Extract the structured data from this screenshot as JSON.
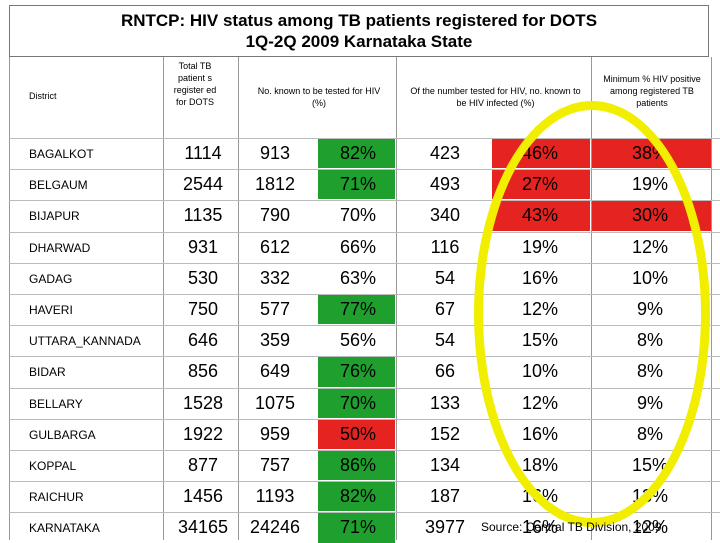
{
  "title_line1": "RNTCP: HIV status among TB patients registered for DOTS",
  "title_line2": "1Q-2Q 2009 Karnataka State",
  "headers": {
    "district": "District",
    "total": "Total TB patient s register ed for DOTS",
    "known_tested": "No. known to be tested for HIV (%)",
    "hiv_infected": "Of the number tested for HIV, no. known to be HIV infected (%)",
    "min_positive": "Minimum % HIV positive among registered TB patients"
  },
  "rows": [
    {
      "district": "BAGALKOT",
      "total": "1114",
      "tested": "913",
      "tested_pct": "82%",
      "infected": "423",
      "infected_pct": "46%",
      "min_pct": "38%",
      "tested_bg": "#1fa02e",
      "infected_bg": "#e52320",
      "min_bg": "#e52320"
    },
    {
      "district": "BELGAUM",
      "total": "2544",
      "tested": "1812",
      "tested_pct": "71%",
      "infected": "493",
      "infected_pct": "27%",
      "min_pct": "19%",
      "tested_bg": "#1fa02e",
      "infected_bg": "#e52320",
      "min_bg": "#ffffff"
    },
    {
      "district": "BIJAPUR",
      "total": "1135",
      "tested": "790",
      "tested_pct": "70%",
      "infected": "340",
      "infected_pct": "43%",
      "min_pct": "30%",
      "tested_bg": "#ffffff",
      "infected_bg": "#e52320",
      "min_bg": "#e52320"
    },
    {
      "district": "DHARWAD",
      "total": "931",
      "tested": "612",
      "tested_pct": "66%",
      "infected": "116",
      "infected_pct": "19%",
      "min_pct": "12%",
      "tested_bg": "#ffffff",
      "infected_bg": "#ffffff",
      "min_bg": "#ffffff"
    },
    {
      "district": "GADAG",
      "total": "530",
      "tested": "332",
      "tested_pct": "63%",
      "infected": "54",
      "infected_pct": "16%",
      "min_pct": "10%",
      "tested_bg": "#ffffff",
      "infected_bg": "#ffffff",
      "min_bg": "#ffffff"
    },
    {
      "district": "HAVERI",
      "total": "750",
      "tested": "577",
      "tested_pct": "77%",
      "infected": "67",
      "infected_pct": "12%",
      "min_pct": "9%",
      "tested_bg": "#1fa02e",
      "infected_bg": "#ffffff",
      "min_bg": "#ffffff"
    },
    {
      "district": "UTTARA_KANNADA",
      "total": "646",
      "tested": "359",
      "tested_pct": "56%",
      "infected": "54",
      "infected_pct": "15%",
      "min_pct": "8%",
      "tested_bg": "#ffffff",
      "infected_bg": "#ffffff",
      "min_bg": "#ffffff"
    },
    {
      "district": "BIDAR",
      "total": "856",
      "tested": "649",
      "tested_pct": "76%",
      "infected": "66",
      "infected_pct": "10%",
      "min_pct": "8%",
      "tested_bg": "#1fa02e",
      "infected_bg": "#ffffff",
      "min_bg": "#ffffff"
    },
    {
      "district": "BELLARY",
      "total": "1528",
      "tested": "1075",
      "tested_pct": "70%",
      "infected": "133",
      "infected_pct": "12%",
      "min_pct": "9%",
      "tested_bg": "#1fa02e",
      "infected_bg": "#ffffff",
      "min_bg": "#ffffff"
    },
    {
      "district": "GULBARGA",
      "total": "1922",
      "tested": "959",
      "tested_pct": "50%",
      "infected": "152",
      "infected_pct": "16%",
      "min_pct": "8%",
      "tested_bg": "#e52320",
      "infected_bg": "#ffffff",
      "min_bg": "#ffffff"
    },
    {
      "district": "KOPPAL",
      "total": "877",
      "tested": "757",
      "tested_pct": "86%",
      "infected": "134",
      "infected_pct": "18%",
      "min_pct": "15%",
      "tested_bg": "#1fa02e",
      "infected_bg": "#ffffff",
      "min_bg": "#ffffff"
    },
    {
      "district": "RAICHUR",
      "total": "1456",
      "tested": "1193",
      "tested_pct": "82%",
      "infected": "187",
      "infected_pct": "16%",
      "min_pct": "13%",
      "tested_bg": "#1fa02e",
      "infected_bg": "#ffffff",
      "min_bg": "#ffffff"
    },
    {
      "district": "KARNATAKA",
      "total": "34165",
      "tested": "24246",
      "tested_pct": "71%",
      "infected": "3977",
      "infected_pct": "16%",
      "min_pct": "12%",
      "tested_bg": "#1fa02e",
      "infected_bg": "#ffffff",
      "min_bg": "#ffffff"
    }
  ],
  "source": "Source: Central TB Division, 2009",
  "highlight_color": "#f2ee00"
}
